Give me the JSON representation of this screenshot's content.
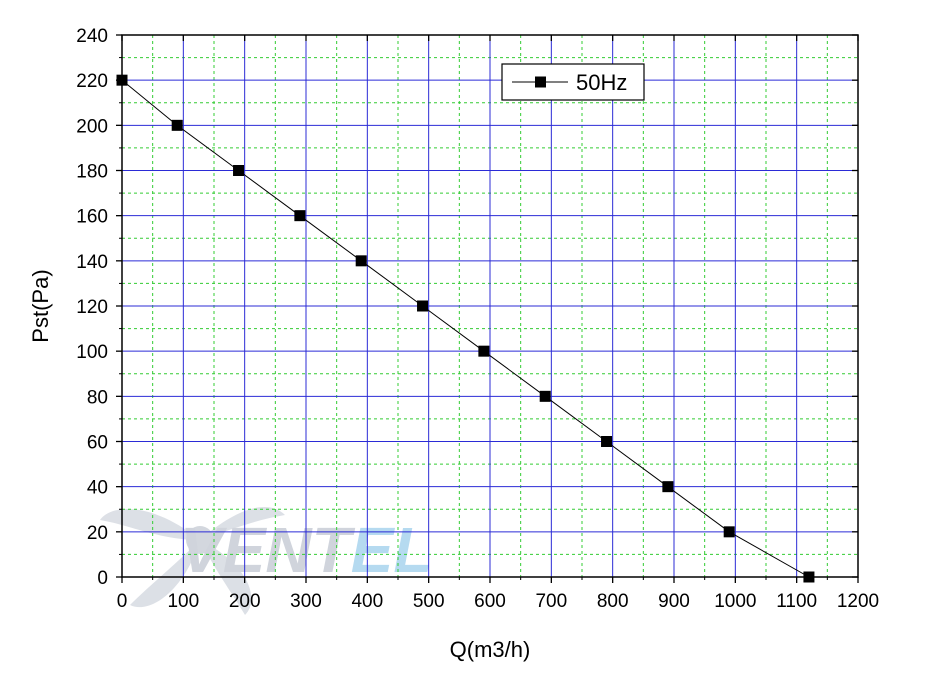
{
  "chart_data": {
    "type": "line",
    "xlabel": "Q(m3/h)",
    "ylabel": "Pst(Pa)",
    "xlim": [
      0,
      1200
    ],
    "ylim": [
      0,
      240
    ],
    "xticks": [
      0,
      100,
      200,
      300,
      400,
      500,
      600,
      700,
      800,
      900,
      1000,
      1100,
      1200
    ],
    "yticks": [
      0,
      20,
      40,
      60,
      80,
      100,
      120,
      140,
      160,
      180,
      200,
      220,
      240
    ],
    "grid": {
      "major": true,
      "minor": true,
      "major_color": "#2b2bd6",
      "minor_color": "#33cc33"
    },
    "legend_position": "top-right",
    "series": [
      {
        "name": "50Hz",
        "color": "#000000",
        "marker": "square",
        "x": [
          0,
          90,
          190,
          290,
          390,
          490,
          590,
          690,
          790,
          890,
          990,
          1120
        ],
        "y": [
          220,
          200,
          180,
          160,
          140,
          120,
          100,
          80,
          60,
          40,
          20,
          0
        ]
      }
    ]
  },
  "watermark": {
    "text_part1": "VENT",
    "text_part2": "EL",
    "color1": "#c8cdd6",
    "color2": "#a9d4ee"
  }
}
